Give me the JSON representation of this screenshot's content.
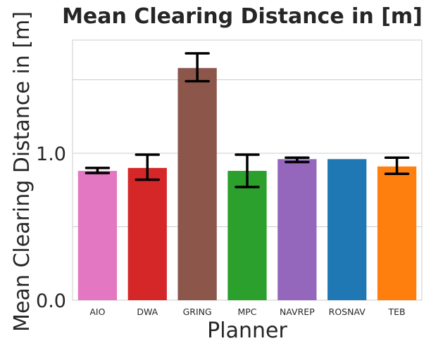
{
  "chart_data": {
    "type": "bar",
    "title": "Mean Clearing Distance in [m]",
    "xlabel": "Planner",
    "ylabel": "Mean Clearing Distance in [m]",
    "categories": [
      "AIO",
      "DWA",
      "GRING",
      "MPC",
      "NAVREP",
      "ROSNAV",
      "TEB"
    ],
    "values": [
      0.88,
      0.9,
      1.58,
      0.88,
      0.96,
      0.96,
      0.91
    ],
    "error_low": [
      0.865,
      0.82,
      1.49,
      0.77,
      0.94,
      0.96,
      0.86
    ],
    "error_high": [
      0.9,
      0.99,
      1.68,
      0.99,
      0.97,
      0.96,
      0.97
    ],
    "colors": [
      "#e377c2",
      "#d62728",
      "#8c564b",
      "#2ca02c",
      "#9467bd",
      "#1f77b4",
      "#ff7f0e"
    ],
    "yticks": [
      0.0,
      1.0
    ],
    "ytick_labels": [
      "0.0",
      "1.0"
    ],
    "ylim": [
      0,
      1.77
    ],
    "grid": true,
    "gridlines": [
      0.5,
      1.0,
      1.5
    ]
  }
}
